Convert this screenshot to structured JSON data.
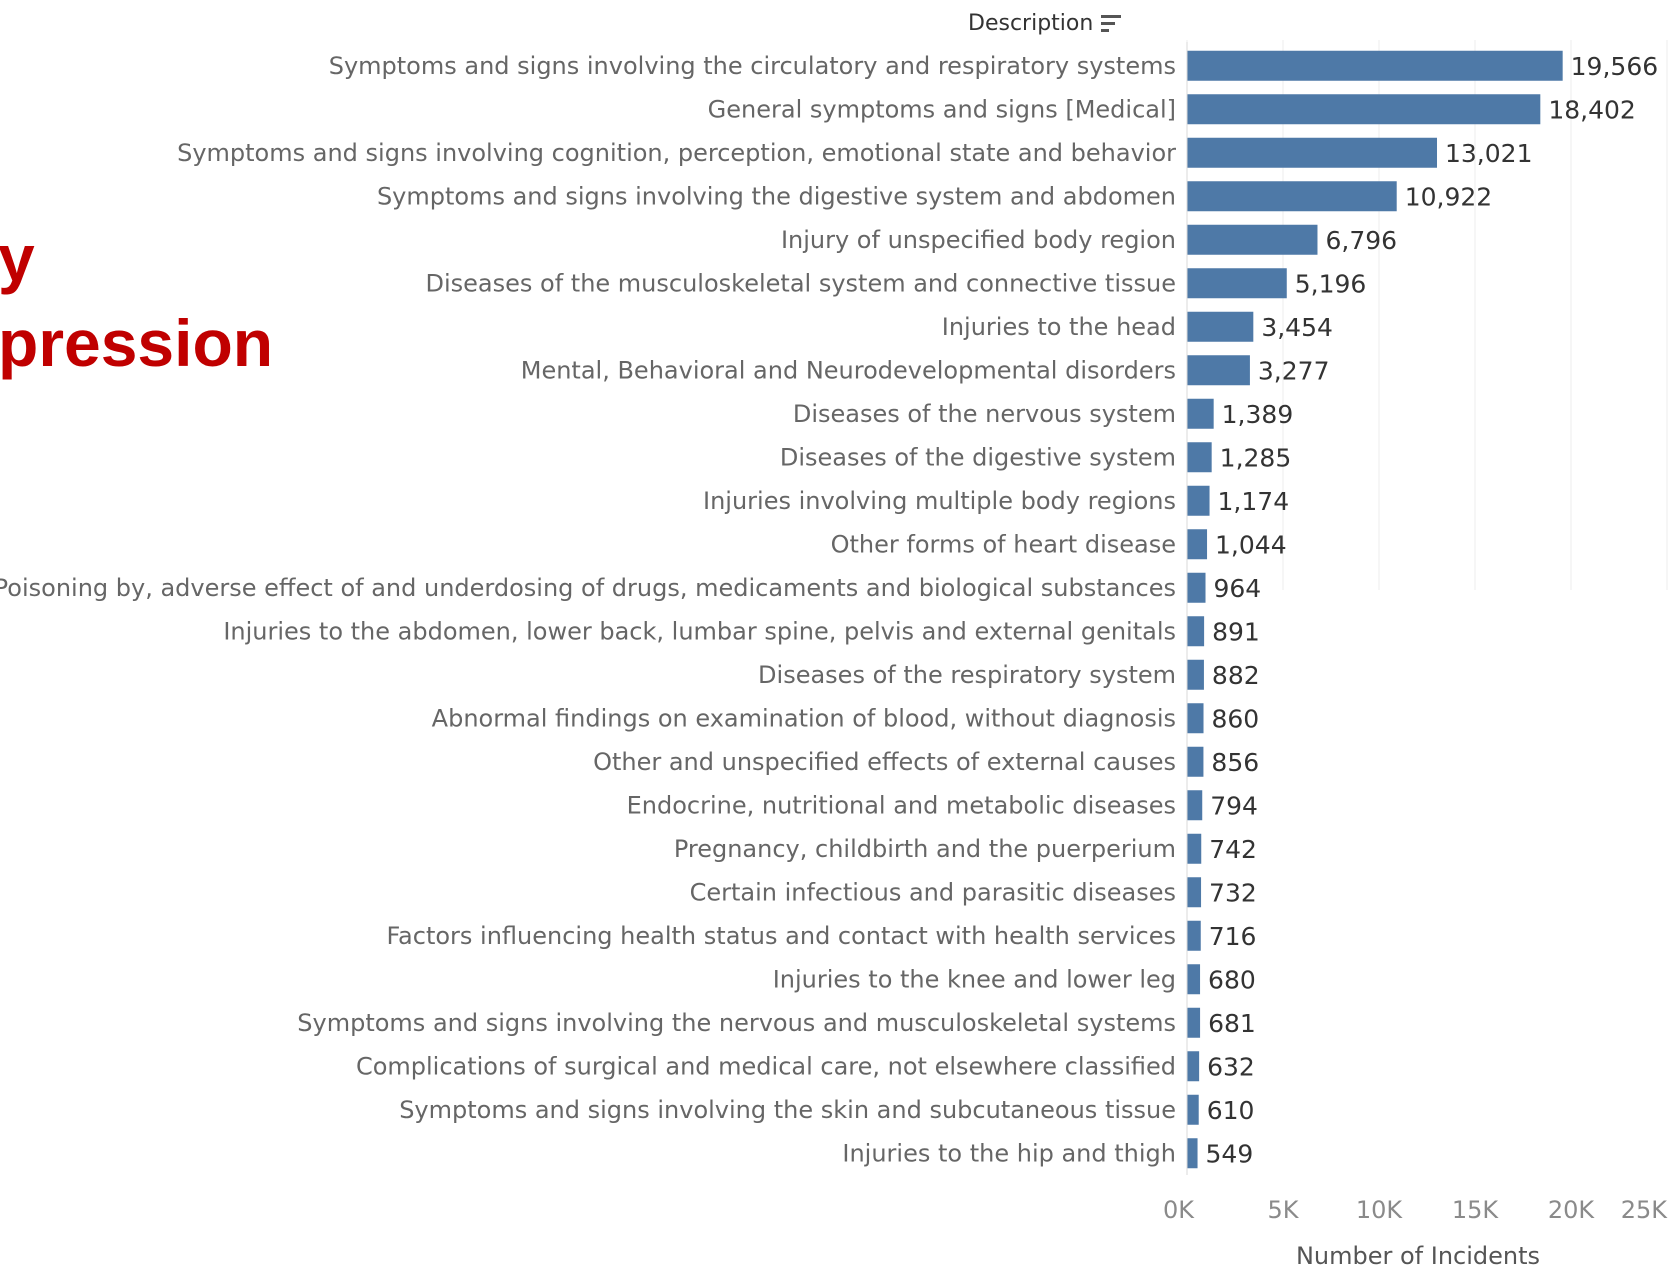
{
  "page": {
    "cut_title": [
      "y",
      "pression"
    ]
  },
  "chart_data": {
    "type": "bar",
    "orientation": "horizontal",
    "header_label": "Description",
    "sort_icon": "sort-descending-icon",
    "xlabel": "Number of Incidents",
    "xlim": [
      0,
      25000
    ],
    "xticks": [
      "0K",
      "5K",
      "10K",
      "15K",
      "20K",
      "25K"
    ],
    "grid": true,
    "bar_color": "#4e79a7",
    "categories": [
      "Symptoms and signs involving the circulatory and respiratory systems",
      "General symptoms and signs [Medical]",
      "Symptoms and signs involving cognition, perception, emotional state and behavior",
      "Symptoms and signs involving the digestive system and abdomen",
      "Injury of unspecified body region",
      "Diseases of the musculoskeletal system and connective tissue",
      "Injuries to the head",
      "Mental, Behavioral and Neurodevelopmental disorders",
      "Diseases of the nervous system",
      "Diseases of the digestive system",
      "Injuries involving multiple body regions",
      "Other forms of heart disease",
      "Poisoning by, adverse effect of and underdosing of drugs, medicaments and biological substances",
      "Injuries to the abdomen, lower back, lumbar spine, pelvis and external genitals",
      "Diseases of the respiratory system",
      "Abnormal findings on examination of blood, without diagnosis",
      "Other and unspecified effects of external causes",
      "Endocrine, nutritional and metabolic diseases",
      "Pregnancy, childbirth and the puerperium",
      "Certain infectious and parasitic diseases",
      "Factors influencing health status and contact with health services",
      "Injuries to the knee and lower leg",
      "Symptoms and signs involving the nervous and musculoskeletal systems",
      "Complications of surgical and medical care, not elsewhere classified",
      "Symptoms and signs involving the skin and subcutaneous tissue",
      "Injuries to the hip and thigh"
    ],
    "values": [
      19566,
      18402,
      13021,
      10922,
      6796,
      5196,
      3454,
      3277,
      1389,
      1285,
      1174,
      1044,
      964,
      891,
      882,
      860,
      856,
      794,
      742,
      732,
      716,
      680,
      681,
      632,
      610,
      549
    ],
    "value_labels": [
      "19,566",
      "18,402",
      "13,021",
      "10,922",
      "6,796",
      "5,196",
      "3,454",
      "3,277",
      "1,389",
      "1,285",
      "1,174",
      "1,044",
      "964",
      "891",
      "882",
      "860",
      "856",
      "794",
      "742",
      "732",
      "716",
      "680",
      "681",
      "632",
      "610",
      "549"
    ]
  }
}
